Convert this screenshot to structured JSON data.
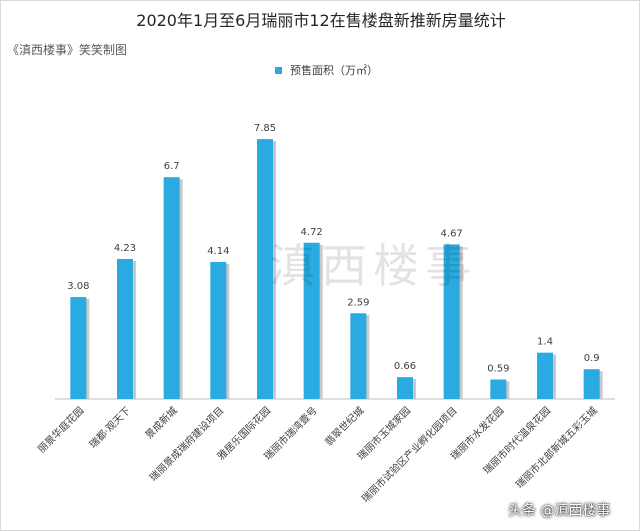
{
  "title": "2020年1月至6月瑞丽市12在售楼盘新推新房量统计",
  "maker": "《滇西楼事》笑笑制图",
  "watermark": "滇西楼事",
  "credit": "头条 @滇西楼事",
  "colors": {
    "bar": "#29abe2",
    "bar_shadow": "#c9c9c9"
  },
  "chart_data": {
    "type": "bar",
    "title": "2020年1月至6月瑞丽市12在售楼盘新推新房量统计",
    "xlabel": "",
    "ylabel": "",
    "ylim": [
      0,
      8.7
    ],
    "grid": false,
    "legend_position": "top-center",
    "categories": [
      "丽景华庭花园",
      "瑞都·观天下",
      "景成新城",
      "瑞丽景成瑞府建设项目",
      "雅居乐国际花园",
      "瑞丽市瑞湾壹号",
      "翡翠世纪城",
      "瑞丽市玉城家园",
      "瑞丽市试验区产业孵化园项目",
      "瑞丽市水发花园",
      "瑞丽市时代温泉花园",
      "瑞丽市北部新城五彩玉城"
    ],
    "series": [
      {
        "name": "预售面积（万㎡）",
        "values": [
          3.08,
          4.23,
          6.7,
          4.14,
          7.85,
          4.72,
          2.59,
          0.66,
          4.67,
          0.59,
          1.4,
          0.9
        ]
      }
    ],
    "data_labels": [
      "3.08",
      "4.23",
      "6.7",
      "4.14",
      "7.85",
      "4.72",
      "2.59",
      "0.66",
      "4.67",
      "0.59",
      "1.4",
      "0.9"
    ]
  }
}
